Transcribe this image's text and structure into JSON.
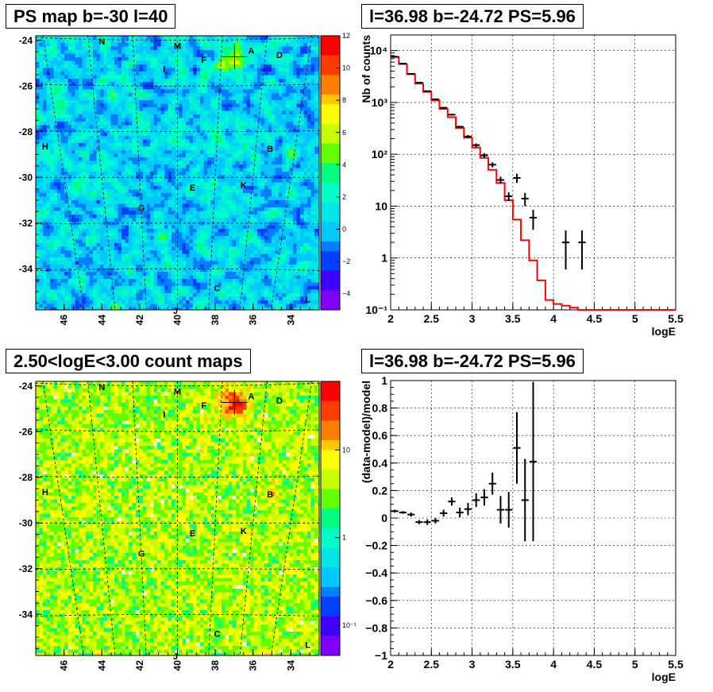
{
  "titles": {
    "map_top": "PS map b=-30 l=40",
    "spectrum": "l=36.98 b=-24.72 PS=5.96",
    "map_bottom": "2.50<logE<3.00 count maps",
    "residual": "l=36.98 b=-24.72 PS=5.96"
  },
  "colors": {
    "model_line": "#ff0000",
    "data": "#000000",
    "grid": "#000000"
  },
  "chart_data": [
    {
      "type": "heatmap",
      "title": "PS map b=-30 l=40",
      "x_ticks": [
        "46",
        "44",
        "42",
        "40",
        "38",
        "36",
        "34"
      ],
      "y_ticks": [
        "-24",
        "-26",
        "-28",
        "-30",
        "-32",
        "-34"
      ],
      "xlim": [
        47.5,
        32.5
      ],
      "ylim": [
        -35.8,
        -23.8
      ],
      "colorbar_ticks": [
        "12",
        "10",
        "8",
        "6",
        "4",
        "2",
        "0",
        "−2",
        "−4"
      ],
      "colorbar_range": [
        -5,
        12
      ],
      "sources": [
        {
          "label": "N",
          "l": 44,
          "b": -24.0
        },
        {
          "label": "M",
          "l": 40,
          "b": -24.2
        },
        {
          "label": "A",
          "l": 36.1,
          "b": -24.4
        },
        {
          "label": "D",
          "l": 34.6,
          "b": -24.6
        },
        {
          "label": "F",
          "l": 38.6,
          "b": -24.8
        },
        {
          "label": "I",
          "l": 40.7,
          "b": -25.2
        },
        {
          "label": "H",
          "l": 47.0,
          "b": -28.6
        },
        {
          "label": "B",
          "l": 35.1,
          "b": -28.7
        },
        {
          "label": "E",
          "l": 39.2,
          "b": -30.4
        },
        {
          "label": "K",
          "l": 36.5,
          "b": -30.3
        },
        {
          "label": "G",
          "l": 41.9,
          "b": -31.3
        },
        {
          "label": "C",
          "l": 37.9,
          "b": -34.8
        },
        {
          "label": "L",
          "l": 33.1,
          "b": -35.3
        },
        {
          "label": "J",
          "l": 40.1,
          "b": -35.8
        }
      ],
      "marker": {
        "l": 36.98,
        "b": -24.72
      }
    },
    {
      "type": "line",
      "title": "l=36.98 b=-24.72 PS=5.96",
      "xlabel": "logE",
      "ylabel": "Nb of counts",
      "xlim": [
        2,
        5.5
      ],
      "ylim": [
        0.1,
        20000
      ],
      "yscale": "log",
      "x_ticks": [
        "2",
        "2.5",
        "3",
        "3.5",
        "4",
        "4.5",
        "5",
        "5.5"
      ],
      "y_ticks": [
        "10⁻¹",
        "1",
        "10",
        "10²",
        "10³",
        "10⁴"
      ],
      "grid": true,
      "series": [
        {
          "kind": "step",
          "bin_edges": [
            2.0,
            2.1,
            2.2,
            2.3,
            2.4,
            2.5,
            2.6,
            2.7,
            2.8,
            2.9,
            3.0,
            3.1,
            3.2,
            3.3,
            3.4,
            3.5,
            3.6,
            3.7,
            3.8,
            3.9,
            4.0,
            4.1,
            4.2,
            4.3,
            5.5
          ],
          "values": [
            7500,
            5500,
            3500,
            2300,
            1600,
            1100,
            750,
            520,
            320,
            210,
            135,
            85,
            50,
            28,
            13,
            5.5,
            2.2,
            0.9,
            0.37,
            0.155,
            0.13,
            0.12,
            0.11,
            0.1
          ]
        },
        {
          "kind": "points",
          "x": [
            2.05,
            2.15,
            2.25,
            2.35,
            2.45,
            2.55,
            2.65,
            2.75,
            2.85,
            2.95,
            3.05,
            3.15,
            3.25,
            3.35,
            3.45,
            3.55,
            3.65,
            3.75,
            4.15,
            4.35
          ],
          "y": [
            7600,
            5600,
            3550,
            2400,
            1650,
            1150,
            790,
            580,
            340,
            220,
            150,
            95,
            63,
            32,
            15.5,
            35,
            14,
            6,
            2,
            2
          ],
          "yerr_lo": [
            7500,
            5520,
            3490,
            2350,
            1610,
            1120,
            770,
            560,
            330,
            205,
            138,
            85,
            56,
            27,
            12.5,
            28,
            10,
            3.5,
            0.6,
            0.6
          ],
          "yerr_hi": [
            7700,
            5680,
            3610,
            2450,
            1690,
            1180,
            810,
            600,
            350,
            235,
            162,
            105,
            70,
            37,
            18.5,
            42,
            18,
            8.5,
            3.4,
            3.4
          ]
        }
      ]
    },
    {
      "type": "heatmap",
      "title": "2.50<logE<3.00 count maps",
      "x_ticks": [
        "46",
        "44",
        "42",
        "40",
        "38",
        "36",
        "34"
      ],
      "y_ticks": [
        "-24",
        "-26",
        "-28",
        "-30",
        "-32",
        "-34"
      ],
      "xlim": [
        47.5,
        32.5
      ],
      "ylim": [
        -35.8,
        -23.8
      ],
      "colorbar_ticks": [
        "10",
        "1",
        "10⁻¹"
      ],
      "colorbar_scale": "log",
      "sources": [
        {
          "label": "N",
          "l": 44,
          "b": -24.0
        },
        {
          "label": "M",
          "l": 40,
          "b": -24.2
        },
        {
          "label": "A",
          "l": 36.1,
          "b": -24.4
        },
        {
          "label": "D",
          "l": 34.6,
          "b": -24.6
        },
        {
          "label": "F",
          "l": 38.6,
          "b": -24.8
        },
        {
          "label": "I",
          "l": 40.7,
          "b": -25.2
        },
        {
          "label": "H",
          "l": 47.0,
          "b": -28.6
        },
        {
          "label": "B",
          "l": 35.1,
          "b": -28.7
        },
        {
          "label": "E",
          "l": 39.2,
          "b": -30.4
        },
        {
          "label": "K",
          "l": 36.5,
          "b": -30.3
        },
        {
          "label": "G",
          "l": 41.9,
          "b": -31.3
        },
        {
          "label": "C",
          "l": 37.9,
          "b": -34.8
        },
        {
          "label": "L",
          "l": 33.1,
          "b": -35.3
        },
        {
          "label": "J",
          "l": 40.1,
          "b": -35.8
        }
      ],
      "marker": {
        "l": 36.98,
        "b": -24.72
      }
    },
    {
      "type": "scatter",
      "title": "l=36.98 b=-24.72 PS=5.96",
      "xlabel": "logE",
      "ylabel": "(data-model)/model",
      "xlim": [
        2,
        5.5
      ],
      "ylim": [
        -1,
        1
      ],
      "x_ticks": [
        "2",
        "2.5",
        "3",
        "3.5",
        "4",
        "4.5",
        "5",
        "5.5"
      ],
      "y_ticks": [
        "−1",
        "−0.8",
        "−0.6",
        "−0.4",
        "−0.2",
        "0",
        "0.2",
        "0.4",
        "0.6",
        "0.8",
        "1"
      ],
      "grid": true,
      "series": [
        {
          "kind": "points",
          "x": [
            2.05,
            2.15,
            2.25,
            2.35,
            2.45,
            2.55,
            2.65,
            2.75,
            2.85,
            2.95,
            3.05,
            3.15,
            3.25,
            3.35,
            3.45,
            3.55,
            3.65,
            3.75
          ],
          "y": [
            0.05,
            0.04,
            0.025,
            -0.03,
            -0.03,
            -0.02,
            0.035,
            0.12,
            0.04,
            0.065,
            0.13,
            0.15,
            0.25,
            0.06,
            0.06,
            0.51,
            0.13,
            0.41
          ],
          "yerr": [
            0.01,
            0.01,
            0.015,
            0.015,
            0.02,
            0.02,
            0.025,
            0.03,
            0.035,
            0.045,
            0.05,
            0.06,
            0.08,
            0.1,
            0.13,
            0.26,
            0.3,
            0.58
          ]
        }
      ]
    }
  ]
}
